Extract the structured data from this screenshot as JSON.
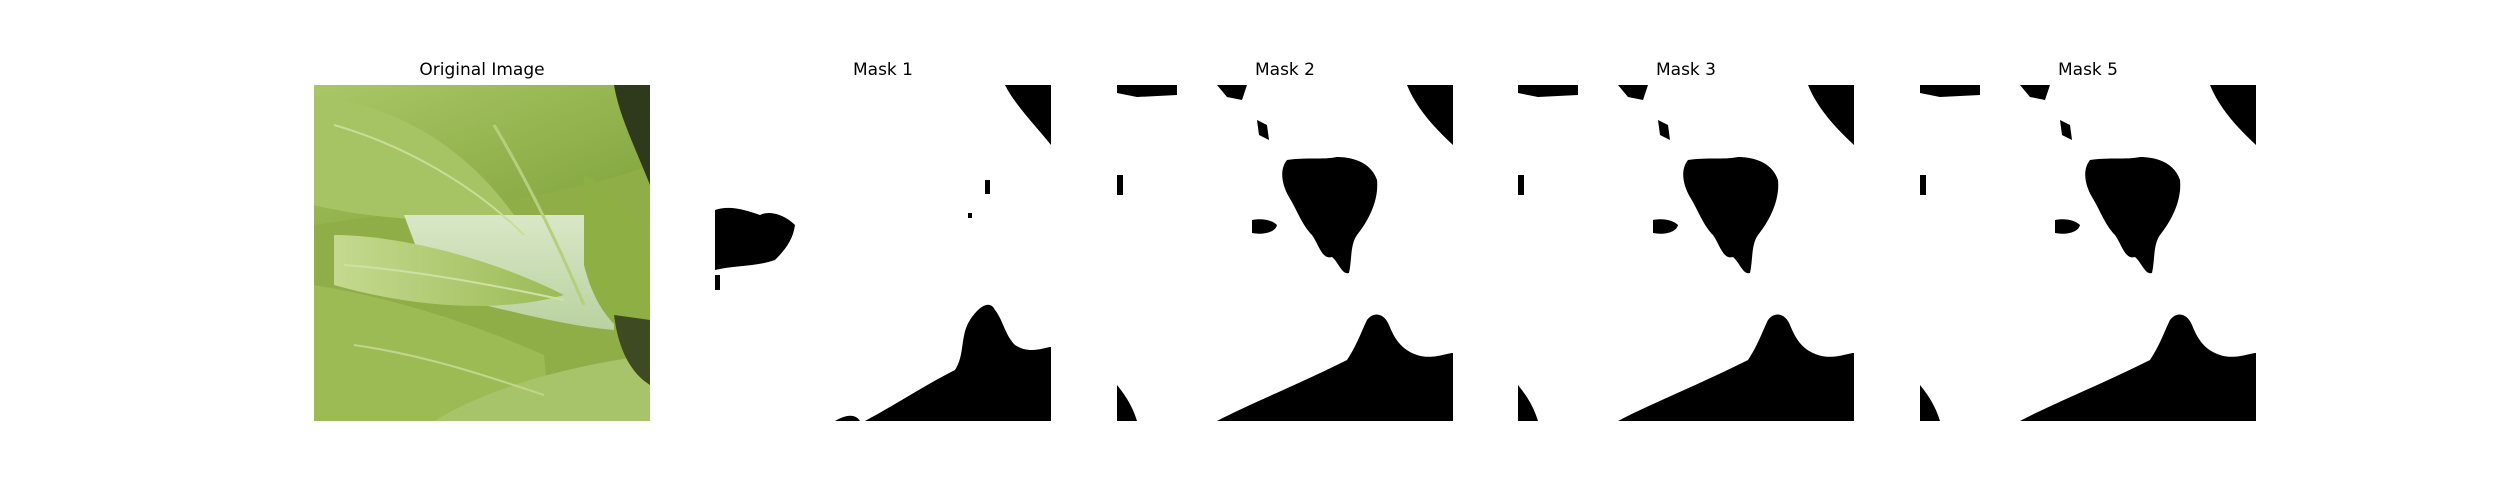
{
  "panels": [
    {
      "title": "Original Image",
      "kind": "photo"
    },
    {
      "title": "Mask 1",
      "kind": "mask"
    },
    {
      "title": "Mask 2",
      "kind": "mask"
    },
    {
      "title": "Mask 3",
      "kind": "mask"
    },
    {
      "title": "Mask 5",
      "kind": "mask"
    }
  ],
  "colors": {
    "background": "#ffffff",
    "mask_foreground": "#ffffff",
    "mask_background": "#000000",
    "leaf_light": "#b7cf7a",
    "leaf_mid": "#94b34c",
    "leaf_dark": "#6f8f2c"
  }
}
